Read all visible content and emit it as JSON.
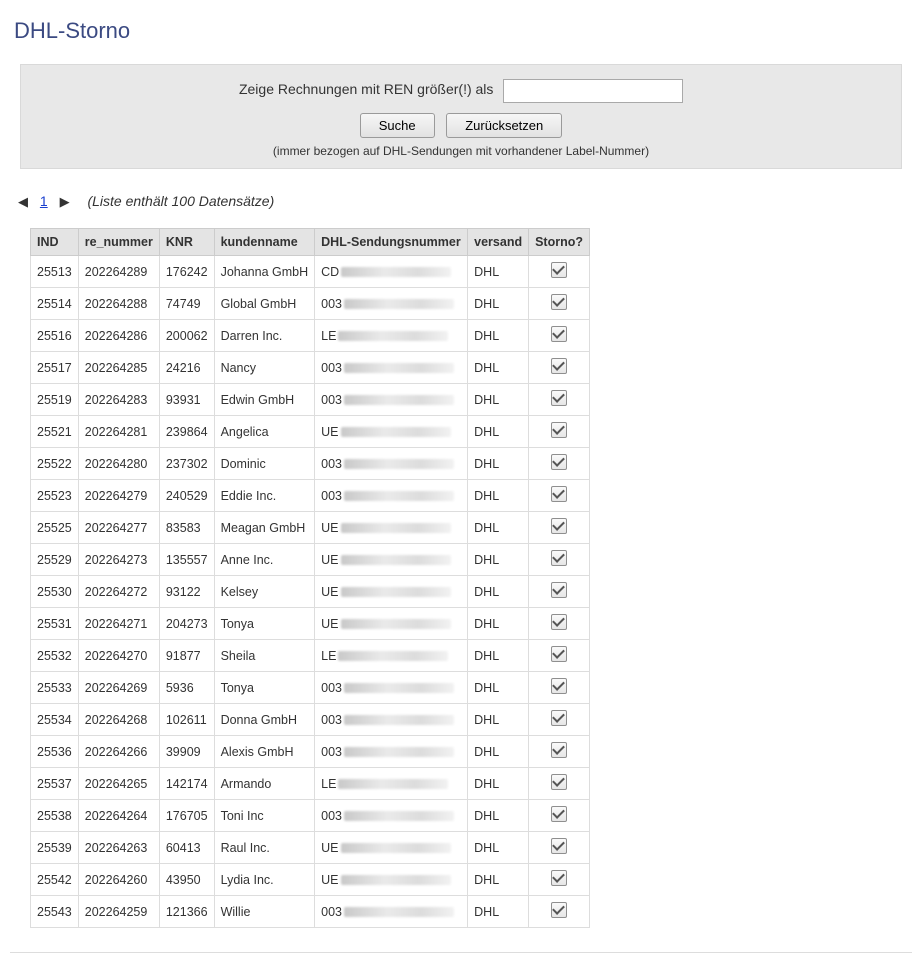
{
  "page": {
    "title": "DHL-Storno"
  },
  "filter": {
    "label": "Zeige Rechnungen mit REN größer(!) als",
    "value": "",
    "search_button": "Suche",
    "reset_button": "Zurücksetzen",
    "note": "(immer bezogen auf DHL-Sendungen mit vorhandener Label-Nummer)"
  },
  "pager": {
    "prev_glyph": "◀",
    "page": "1",
    "next_glyph": "▶",
    "list_info": "(Liste enthält 100 Datensätze)"
  },
  "table": {
    "columns": {
      "ind": "IND",
      "re_nummer": "re_nummer",
      "knr": "KNR",
      "kundenname": "kundenname",
      "sendungsnummer": "DHL-Sendungsnummer",
      "versand": "versand",
      "storno": "Storno?"
    },
    "rows": [
      {
        "ind": "25513",
        "re": "202264289",
        "knr": "176242",
        "name": "Johanna GmbH",
        "track_prefix": "CD",
        "versand": "DHL",
        "storno": true
      },
      {
        "ind": "25514",
        "re": "202264288",
        "knr": "74749",
        "name": "Global GmbH",
        "track_prefix": "003",
        "versand": "DHL",
        "storno": true
      },
      {
        "ind": "25516",
        "re": "202264286",
        "knr": "200062",
        "name": "Darren Inc.",
        "track_prefix": "LE",
        "versand": "DHL",
        "storno": true
      },
      {
        "ind": "25517",
        "re": "202264285",
        "knr": "24216",
        "name": "Nancy",
        "track_prefix": "003",
        "versand": "DHL",
        "storno": true
      },
      {
        "ind": "25519",
        "re": "202264283",
        "knr": "93931",
        "name": "Edwin GmbH",
        "track_prefix": "003",
        "versand": "DHL",
        "storno": true
      },
      {
        "ind": "25521",
        "re": "202264281",
        "knr": "239864",
        "name": "Angelica",
        "track_prefix": "UE",
        "versand": "DHL",
        "storno": true
      },
      {
        "ind": "25522",
        "re": "202264280",
        "knr": "237302",
        "name": "Dominic",
        "track_prefix": "003",
        "versand": "DHL",
        "storno": true
      },
      {
        "ind": "25523",
        "re": "202264279",
        "knr": "240529",
        "name": "Eddie Inc.",
        "track_prefix": "003",
        "versand": "DHL",
        "storno": true
      },
      {
        "ind": "25525",
        "re": "202264277",
        "knr": "83583",
        "name": "Meagan GmbH",
        "track_prefix": "UE",
        "versand": "DHL",
        "storno": true
      },
      {
        "ind": "25529",
        "re": "202264273",
        "knr": "135557",
        "name": "Anne Inc.",
        "track_prefix": "UE",
        "versand": "DHL",
        "storno": true
      },
      {
        "ind": "25530",
        "re": "202264272",
        "knr": "93122",
        "name": "Kelsey",
        "track_prefix": "UE",
        "versand": "DHL",
        "storno": true
      },
      {
        "ind": "25531",
        "re": "202264271",
        "knr": "204273",
        "name": "Tonya",
        "track_prefix": "UE",
        "versand": "DHL",
        "storno": true
      },
      {
        "ind": "25532",
        "re": "202264270",
        "knr": "91877",
        "name": "Sheila",
        "track_prefix": "LE",
        "versand": "DHL",
        "storno": true
      },
      {
        "ind": "25533",
        "re": "202264269",
        "knr": "5936",
        "name": "Tonya",
        "track_prefix": "003",
        "versand": "DHL",
        "storno": true
      },
      {
        "ind": "25534",
        "re": "202264268",
        "knr": "102611",
        "name": "Donna GmbH",
        "track_prefix": "003",
        "versand": "DHL",
        "storno": true
      },
      {
        "ind": "25536",
        "re": "202264266",
        "knr": "39909",
        "name": "Alexis GmbH",
        "track_prefix": "003",
        "versand": "DHL",
        "storno": true
      },
      {
        "ind": "25537",
        "re": "202264265",
        "knr": "142174",
        "name": "Armando",
        "track_prefix": "LE",
        "versand": "DHL",
        "storno": true
      },
      {
        "ind": "25538",
        "re": "202264264",
        "knr": "176705",
        "name": "Toni Inc",
        "track_prefix": "003",
        "versand": "DHL",
        "storno": true
      },
      {
        "ind": "25539",
        "re": "202264263",
        "knr": "60413",
        "name": "Raul Inc.",
        "track_prefix": "UE",
        "versand": "DHL",
        "storno": true
      },
      {
        "ind": "25542",
        "re": "202264260",
        "knr": "43950",
        "name": "Lydia Inc.",
        "track_prefix": "UE",
        "versand": "DHL",
        "storno": true
      },
      {
        "ind": "25543",
        "re": "202264259",
        "knr": "121366",
        "name": "Willie",
        "track_prefix": "003",
        "versand": "DHL",
        "storno": true
      }
    ]
  }
}
